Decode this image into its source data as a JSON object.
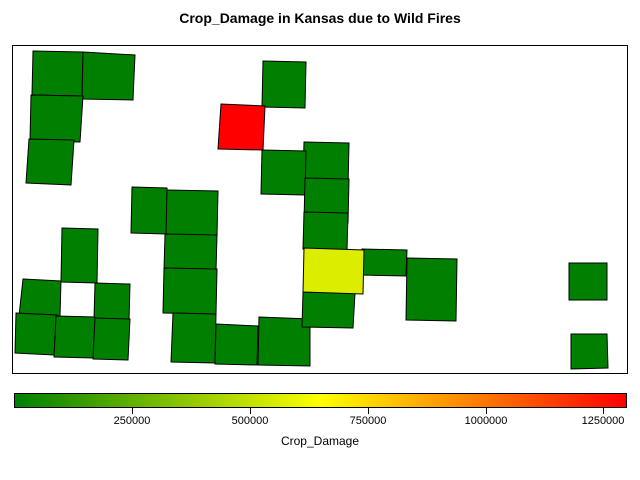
{
  "title": "Crop_Damage in Kansas due to Wild Fires",
  "legend": {
    "title": "Crop_Damage",
    "min": 0,
    "max": 1300000,
    "ticks": [
      "250000",
      "500000",
      "750000",
      "1000000",
      "1250000"
    ],
    "tick_values": [
      250000,
      500000,
      750000,
      1000000,
      1250000
    ],
    "color_stops": [
      "#007f00",
      "#7fbf00",
      "#ffff00",
      "#ff8000",
      "#ff0000"
    ]
  },
  "counties": [
    {
      "value": 0
    },
    {
      "value": 0
    },
    {
      "value": 0
    },
    {
      "value": 0
    },
    {
      "value": 0
    },
    {
      "value": 0
    },
    {
      "value": 1300000
    },
    {
      "value": 0
    },
    {
      "value": 0
    },
    {
      "value": 0
    },
    {
      "value": 0
    },
    {
      "value": 0
    },
    {
      "value": 0
    },
    {
      "value": 0
    },
    {
      "value": 0
    },
    {
      "value": 0
    },
    {
      "value": 0
    },
    {
      "value": 0
    },
    {
      "value": 0
    },
    {
      "value": 0
    },
    {
      "value": 0
    },
    {
      "value": 0
    },
    {
      "value": 0
    },
    {
      "value": 0
    },
    {
      "value": 0
    },
    {
      "value": 560000
    },
    {
      "value": 0
    },
    {
      "value": 0
    },
    {
      "value": 0
    },
    {
      "value": 0
    },
    {
      "value": 0
    },
    {
      "value": 0
    }
  ]
}
